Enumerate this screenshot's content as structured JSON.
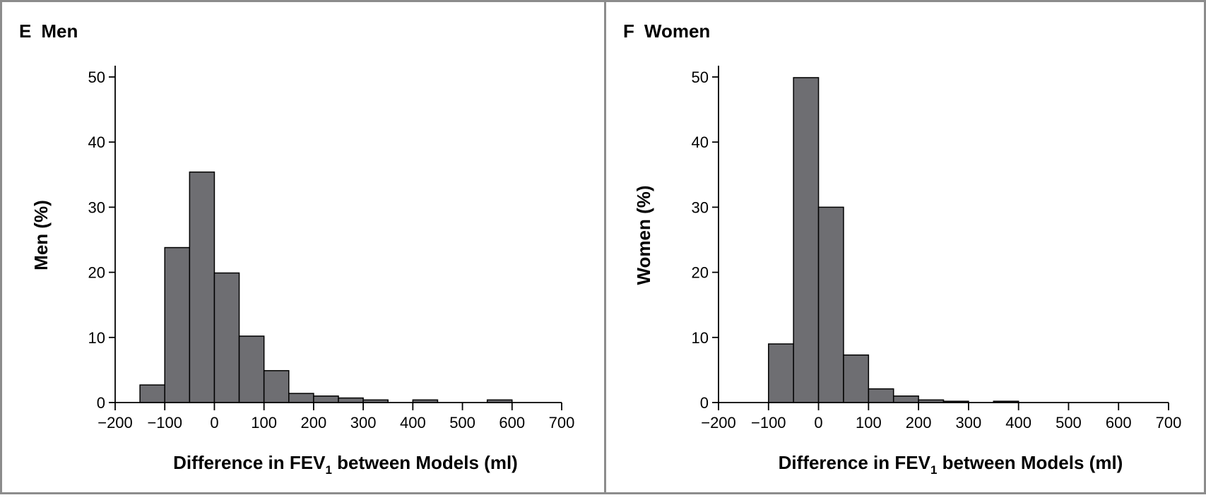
{
  "chart_data": [
    {
      "type": "bar",
      "panel_letter": "E",
      "title": "Men",
      "xlabel": "Difference in FEV",
      "xlabel_sub": "1",
      "xlabel_tail": " between Models (ml)",
      "ylabel": "Men (%)",
      "xlim": [
        -200,
        700
      ],
      "ylim": [
        0,
        50
      ],
      "x_ticks": [
        -200,
        -100,
        0,
        100,
        200,
        300,
        400,
        500,
        600,
        700
      ],
      "x_tick_labels": [
        "−200",
        "−100",
        "0",
        "100",
        "200",
        "300",
        "400",
        "500",
        "600",
        "700"
      ],
      "y_ticks": [
        0,
        10,
        20,
        30,
        40,
        50
      ],
      "y_tick_labels": [
        "0",
        "10",
        "20",
        "30",
        "40",
        "50"
      ],
      "bin_width": 50,
      "bins": [
        {
          "start": -150,
          "value": 2.7
        },
        {
          "start": -100,
          "value": 23.8
        },
        {
          "start": -50,
          "value": 35.4
        },
        {
          "start": 0,
          "value": 19.9
        },
        {
          "start": 50,
          "value": 10.2
        },
        {
          "start": 100,
          "value": 4.9
        },
        {
          "start": 150,
          "value": 1.4
        },
        {
          "start": 200,
          "value": 1.0
        },
        {
          "start": 250,
          "value": 0.7
        },
        {
          "start": 300,
          "value": 0.4
        },
        {
          "start": 400,
          "value": 0.4
        },
        {
          "start": 550,
          "value": 0.4
        }
      ]
    },
    {
      "type": "bar",
      "panel_letter": "F",
      "title": "Women",
      "xlabel": "Difference in FEV",
      "xlabel_sub": "1",
      "xlabel_tail": " between Models (ml)",
      "ylabel": "Women (%)",
      "xlim": [
        -200,
        700
      ],
      "ylim": [
        0,
        50
      ],
      "x_ticks": [
        -200,
        -100,
        0,
        100,
        200,
        300,
        400,
        500,
        600,
        700
      ],
      "x_tick_labels": [
        "−200",
        "−100",
        "0",
        "100",
        "200",
        "300",
        "400",
        "500",
        "600",
        "700"
      ],
      "y_ticks": [
        0,
        10,
        20,
        30,
        40,
        50
      ],
      "y_tick_labels": [
        "0",
        "10",
        "20",
        "30",
        "40",
        "50"
      ],
      "bin_width": 50,
      "bins": [
        {
          "start": -100,
          "value": 9.0
        },
        {
          "start": -50,
          "value": 49.9
        },
        {
          "start": 0,
          "value": 30.0
        },
        {
          "start": 50,
          "value": 7.3
        },
        {
          "start": 100,
          "value": 2.1
        },
        {
          "start": 150,
          "value": 1.0
        },
        {
          "start": 200,
          "value": 0.4
        },
        {
          "start": 250,
          "value": 0.2
        },
        {
          "start": 350,
          "value": 0.2
        }
      ]
    }
  ],
  "colors": {
    "bar_fill": "#6e6e72",
    "bar_stroke": "#000000",
    "frame": "#8c8c8c"
  }
}
